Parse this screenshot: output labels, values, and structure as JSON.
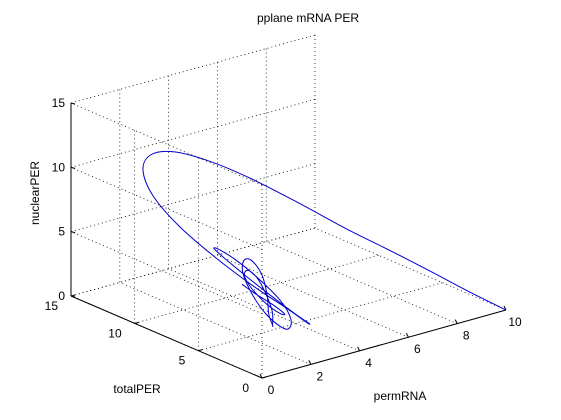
{
  "chart_data": {
    "type": "line",
    "projection": "3d",
    "title": "pplane mRNA PER",
    "xlabel": "permRNA",
    "ylabel": "totalPER",
    "zlabel": "nuclearPER",
    "xlim": [
      0,
      10
    ],
    "ylim": [
      0,
      15
    ],
    "zlim": [
      0,
      15
    ],
    "xticks": [
      "0",
      "2",
      "4",
      "6",
      "8",
      "10"
    ],
    "yticks": [
      "0",
      "5",
      "10",
      "15"
    ],
    "zticks": [
      "0",
      "5",
      "10",
      "15"
    ],
    "grid": true,
    "series": [
      {
        "color": "#0000cc",
        "description_points_note": "trajectory spiraling from (10, 0, 0) to a limit cycle",
        "x": [
          10.0,
          9.6,
          8.8,
          7.8,
          6.6,
          5.3,
          4.2,
          3.3,
          2.6,
          2.1,
          1.8,
          1.7,
          1.8,
          2.1,
          2.5,
          2.9,
          3.2,
          3.2,
          3.0,
          2.6,
          2.2,
          1.9,
          1.8,
          1.9,
          2.2,
          2.6,
          2.9,
          3.0,
          2.8,
          2.4,
          2.1,
          1.9,
          2.0,
          2.3,
          2.7,
          2.9,
          2.8,
          2.4,
          2.0,
          1.9,
          2.0,
          2.4,
          2.7,
          2.8,
          2.6,
          2.2,
          2.0,
          2.1,
          2.4,
          2.7,
          2.7,
          2.4,
          2.1
        ],
        "y": [
          0.0,
          0.2,
          0.6,
          1.3,
          2.3,
          3.6,
          5.3,
          7.2,
          9.2,
          11.0,
          12.2,
          12.6,
          12.0,
          10.5,
          8.3,
          6.0,
          4.0,
          2.6,
          2.1,
          2.4,
          3.4,
          4.8,
          6.3,
          7.4,
          7.6,
          7.0,
          5.8,
          4.3,
          3.1,
          2.5,
          2.6,
          3.4,
          4.6,
          5.9,
          6.6,
          6.4,
          5.4,
          4.2,
          3.3,
          2.8,
          3.0,
          3.8,
          4.9,
          5.8,
          6.1,
          5.6,
          4.6,
          3.7,
          3.2,
          3.4,
          4.2,
          5.1,
          5.6
        ],
        "z": [
          0.0,
          0.6,
          1.8,
          3.4,
          5.3,
          7.3,
          9.2,
          10.7,
          11.6,
          11.8,
          11.2,
          9.9,
          8.1,
          6.2,
          4.4,
          2.9,
          1.9,
          1.5,
          1.8,
          2.6,
          3.7,
          4.8,
          5.6,
          5.9,
          5.6,
          4.8,
          3.7,
          2.6,
          1.8,
          1.5,
          1.8,
          2.6,
          3.5,
          4.4,
          4.9,
          4.9,
          4.3,
          3.4,
          2.5,
          1.9,
          1.8,
          2.3,
          3.1,
          3.9,
          4.4,
          4.4,
          3.9,
          3.1,
          2.4,
          2.1,
          2.4,
          3.1,
          3.8
        ]
      }
    ]
  }
}
